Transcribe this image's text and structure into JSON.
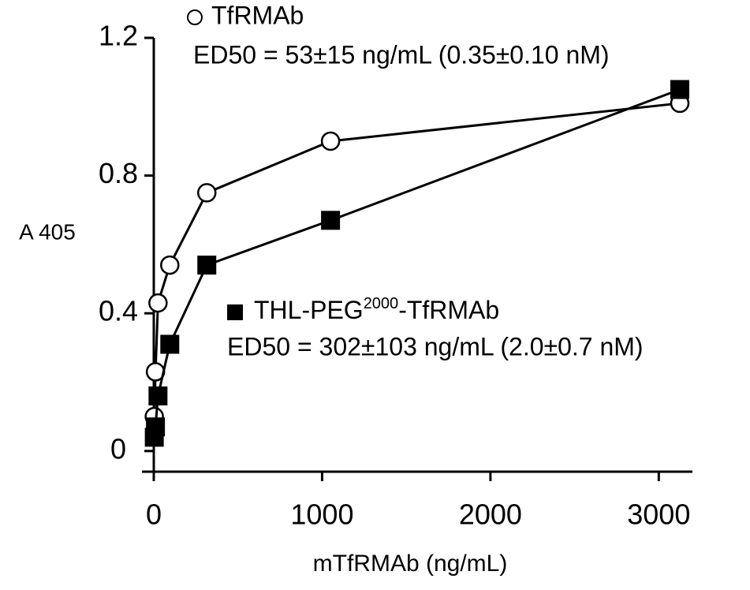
{
  "chart_data": {
    "type": "line",
    "xlabel": "mTfRMAb (ng/mL)",
    "ylabel": "A 405",
    "xlim": [
      0,
      3200
    ],
    "xticks": [
      0,
      1000,
      2000,
      3000
    ],
    "ylim": [
      -0.06,
      1.2
    ],
    "yticks": [
      0,
      0.4,
      0.8,
      1.2
    ],
    "series": [
      {
        "name": "TfRMAb",
        "marker": "circle",
        "color": "#000000",
        "x": [
          3,
          10,
          25,
          95,
          315,
          1050,
          3125
        ],
        "values": [
          0.1,
          0.23,
          0.43,
          0.54,
          0.75,
          0.9,
          1.01
        ]
      },
      {
        "name_parts": [
          "THL-PEG",
          "2000",
          "-TfRMAb"
        ],
        "marker": "square",
        "color": "#000000",
        "x": [
          3,
          10,
          25,
          95,
          315,
          1050,
          3125
        ],
        "values": [
          0.04,
          0.07,
          0.16,
          0.31,
          0.54,
          0.67,
          1.05
        ]
      }
    ],
    "annotations": [
      "ED50 = 53±15 ng/mL (0.35±0.10 nM)",
      "ED50 = 302±103 ng/mL (2.0±0.7 nM)"
    ]
  }
}
